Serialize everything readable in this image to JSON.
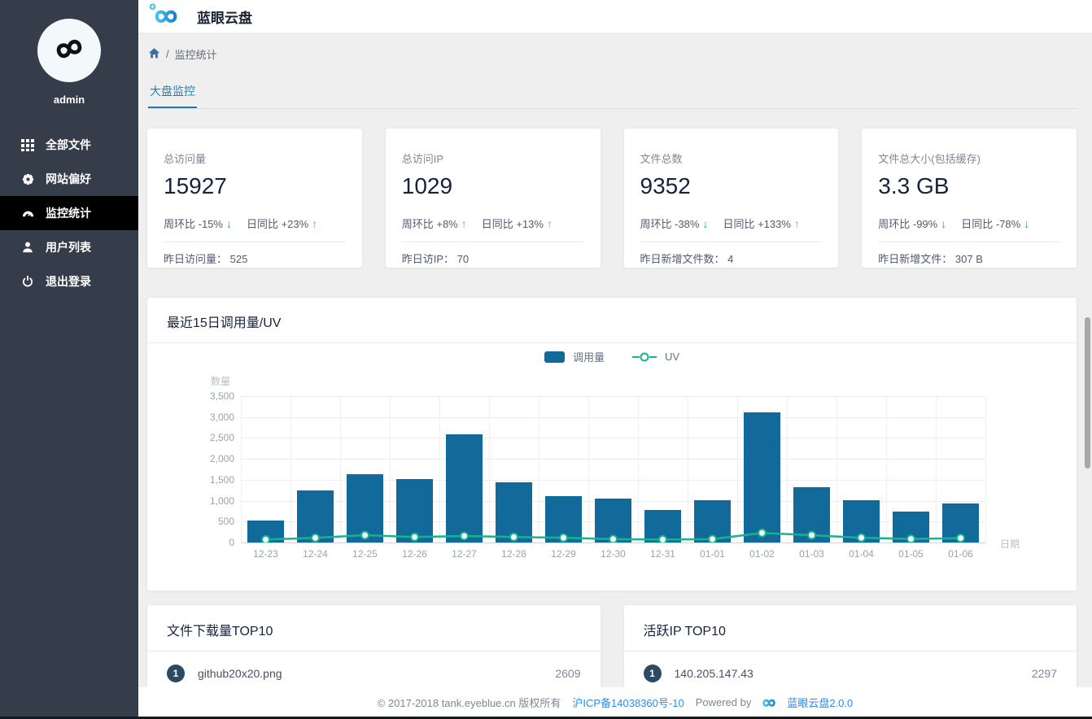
{
  "header": {
    "app_title": "蓝眼云盘"
  },
  "sidebar": {
    "username": "admin",
    "items": [
      {
        "label": "全部文件",
        "icon": "grid-icon",
        "active": false
      },
      {
        "label": "网站偏好",
        "icon": "gear-icon",
        "active": false
      },
      {
        "label": "监控统计",
        "icon": "dashboard-icon",
        "active": true
      },
      {
        "label": "用户列表",
        "icon": "user-icon",
        "active": false
      },
      {
        "label": "退出登录",
        "icon": "power-icon",
        "active": false
      }
    ]
  },
  "breadcrumb": {
    "home_icon": "home-icon",
    "separator": "/",
    "current": "监控统计"
  },
  "tabs": {
    "active": "大盘监控"
  },
  "stat_cards": [
    {
      "label": "总访问量",
      "value": "15927",
      "week_label": "周环比 -15%",
      "week_trend": "down",
      "day_label": "日同比 +23%",
      "day_trend": "up",
      "footer_label": "昨日访问量：",
      "footer_value": "525"
    },
    {
      "label": "总访问IP",
      "value": "1029",
      "week_label": "周环比 +8%",
      "week_trend": "up",
      "day_label": "日同比 +13%",
      "day_trend": "up",
      "footer_label": "昨日访IP：",
      "footer_value": "70"
    },
    {
      "label": "文件总数",
      "value": "9352",
      "week_label": "周环比 -38%",
      "week_trend": "down",
      "day_label": "日同比 +133%",
      "day_trend": "up",
      "footer_label": "昨日新增文件数：",
      "footer_value": "4"
    },
    {
      "label": "文件总大小(包括缓存)",
      "value": "3.3 GB",
      "week_label": "周环比 -99%",
      "week_trend": "down",
      "day_label": "日同比 -78%",
      "day_trend": "down",
      "footer_label": "昨日新增文件：",
      "footer_value": "307 B"
    }
  ],
  "chart_card": {
    "title": "最近15日调用量/UV"
  },
  "chart_data": {
    "type": "bar",
    "title": "最近15日调用量/UV",
    "xlabel": "日期",
    "ylabel": "数量",
    "ylim": [
      0,
      3500
    ],
    "ytick_step": 500,
    "ytick_labels": [
      "0",
      "500",
      "1,000",
      "1,500",
      "2,000",
      "2,500",
      "3,000",
      "3,500"
    ],
    "grid": true,
    "legend_position": "top-center",
    "categories": [
      "12-23",
      "12-24",
      "12-25",
      "12-26",
      "12-27",
      "12-28",
      "12-29",
      "12-30",
      "12-31",
      "01-01",
      "01-02",
      "01-03",
      "01-04",
      "01-05",
      "01-06"
    ],
    "series": [
      {
        "name": "调用量",
        "type": "bar",
        "color": "#116a99",
        "values": [
          525,
          1250,
          1630,
          1520,
          2590,
          1440,
          1100,
          1050,
          780,
          1010,
          3110,
          1320,
          1020,
          740,
          930
        ]
      },
      {
        "name": "UV",
        "type": "line",
        "color": "#17b390",
        "values": [
          70,
          110,
          175,
          130,
          155,
          130,
          115,
          80,
          70,
          80,
          230,
          175,
          115,
          85,
          105
        ]
      }
    ]
  },
  "top_lists": [
    {
      "title": "文件下载量TOP10",
      "rows": [
        {
          "rank": "1",
          "name": "github20x20.png",
          "value": "2609"
        }
      ]
    },
    {
      "title": "活跃IP TOP10",
      "rows": [
        {
          "rank": "1",
          "name": "140.205.147.43",
          "value": "2297"
        }
      ]
    }
  ],
  "footer": {
    "copyright": "© 2017-2018 tank.eyeblue.cn 版权所有",
    "icp_link": "沪ICP备14038360号-10",
    "powered_by": "Powered by",
    "product_link": "蓝眼云盘2.0.0"
  },
  "colors": {
    "sidebar_bg": "#353c4a",
    "sidebar_active_bg": "#000000",
    "accent_blue": "#2680b6",
    "bar_blue": "#116a99",
    "line_teal": "#17b390",
    "trend_up": "#ef7e57",
    "trend_down": "#00b08b",
    "link_blue": "#2d8cf0",
    "badge_navy": "#2d4a63"
  }
}
